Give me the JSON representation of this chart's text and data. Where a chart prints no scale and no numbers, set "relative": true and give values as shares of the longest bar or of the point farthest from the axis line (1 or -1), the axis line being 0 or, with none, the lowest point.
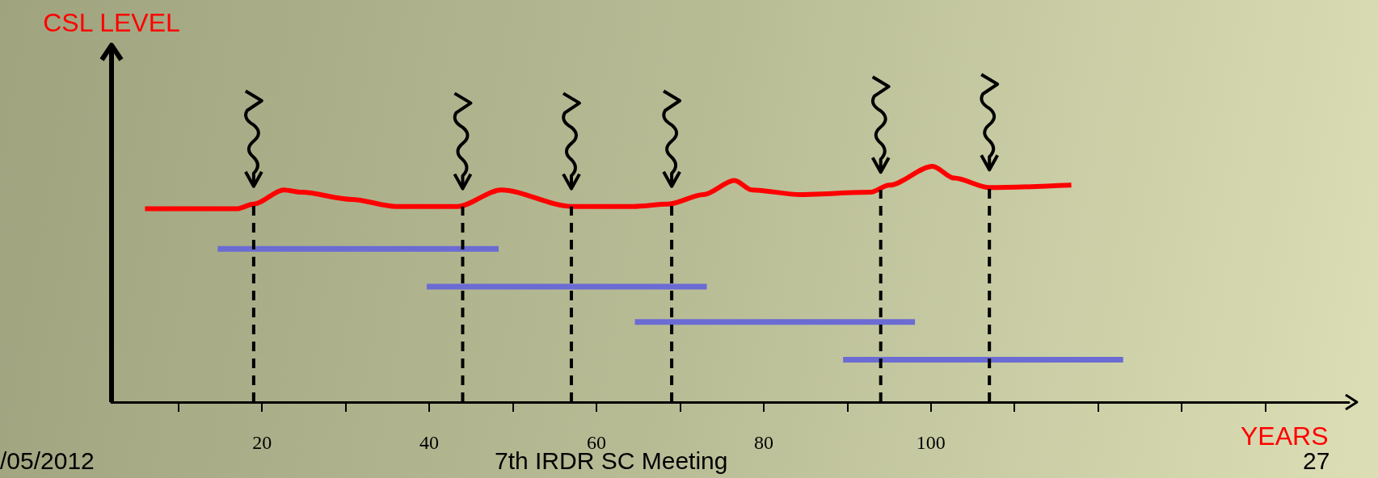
{
  "chart_data": {
    "type": "line",
    "relative": true,
    "ylabel": "CSL LEVEL",
    "xlabel": "YEARS",
    "xlim": [
      2,
      150
    ],
    "grid": false,
    "marker": "none",
    "xticks": [
      {
        "value": 10,
        "label": null
      },
      20,
      {
        "value": 30,
        "label": null
      },
      40,
      {
        "value": 50,
        "label": null
      },
      60,
      {
        "value": 70,
        "label": null
      },
      80,
      {
        "value": 90,
        "label": null
      },
      100,
      {
        "value": 110,
        "label": null
      },
      {
        "value": 120,
        "label": null
      },
      {
        "value": 130,
        "label": null
      },
      {
        "value": 140,
        "label": null
      }
    ],
    "annotations": [
      "/05/2012",
      "7th IRDR SC Meeting",
      "27"
    ],
    "ref_lines": [
      {
        "axis": "x",
        "value": 2,
        "color": "#000000"
      }
    ],
    "series": [
      {
        "color": "#ff0000",
        "x": [
          6,
          17,
          19,
          22.6,
          24.7,
          30.7,
          36,
          43.4,
          48.6,
          57,
          64.4,
          68.6,
          72.8,
          76.5,
          78.6,
          84.4,
          92.8,
          95,
          100.2,
          102.8,
          107,
          116.8
        ],
        "values": [
          0.82,
          0.82,
          0.84,
          0.9,
          0.89,
          0.86,
          0.83,
          0.83,
          0.9,
          0.83,
          0.83,
          0.84,
          0.88,
          0.94,
          0.9,
          0.88,
          0.89,
          0.92,
          1,
          0.95,
          0.91,
          0.92
        ]
      },
      {
        "color": "#6b6bd4",
        "x": [
          14.7,
          48.3
        ],
        "values": [
          0.65,
          0.65
        ]
      },
      {
        "color": "#6b6bd4",
        "x": [
          39.7,
          73.2
        ],
        "values": [
          0.49,
          0.49
        ]
      },
      {
        "color": "#6b6bd4",
        "x": [
          64.6,
          98.1
        ],
        "values": [
          0.34,
          0.34
        ]
      },
      {
        "color": "#6b6bd4",
        "x": [
          89.5,
          123
        ],
        "values": [
          0.18,
          0.18
        ]
      },
      {
        "color": "#000000",
        "line_style": "dashed",
        "x": [
          19,
          19
        ],
        "values": [
          0,
          0.84
        ]
      },
      {
        "color": "#000000",
        "line_style": "dashed",
        "x": [
          44,
          44
        ],
        "values": [
          0,
          0.83
        ]
      },
      {
        "color": "#000000",
        "line_style": "dashed",
        "x": [
          57,
          57
        ],
        "values": [
          0,
          0.83
        ]
      },
      {
        "color": "#000000",
        "line_style": "dashed",
        "x": [
          69,
          69
        ],
        "values": [
          0,
          0.84
        ]
      },
      {
        "color": "#000000",
        "line_style": "dashed",
        "x": [
          94,
          94
        ],
        "values": [
          0,
          0.9
        ]
      },
      {
        "color": "#000000",
        "line_style": "dashed",
        "x": [
          107,
          107
        ],
        "values": [
          0,
          0.91
        ]
      }
    ]
  }
}
